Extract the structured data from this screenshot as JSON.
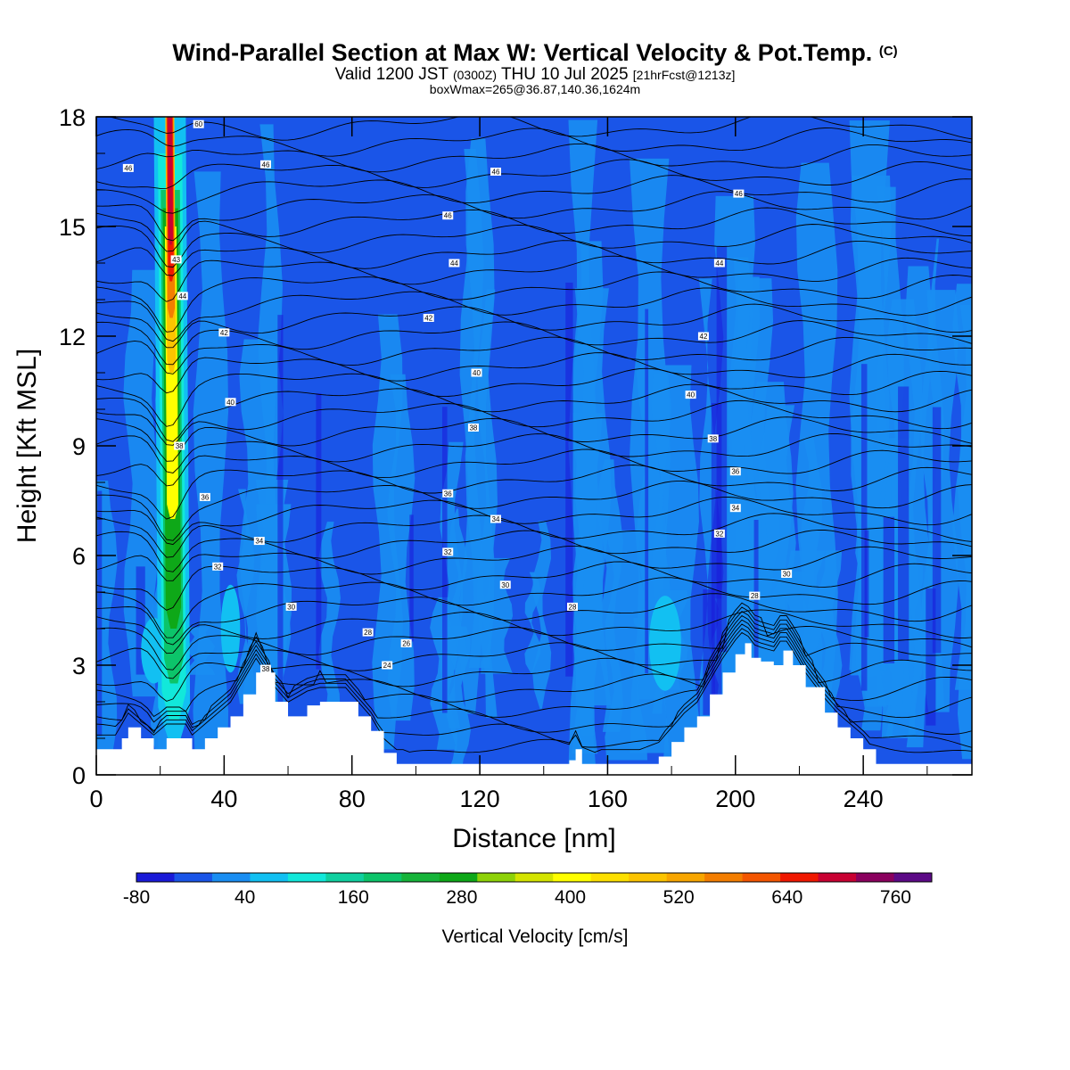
{
  "header": {
    "title": "Wind-Parallel Section at Max W: Vertical Velocity & Pot.Temp.",
    "title_mark": "(C)",
    "valid_pre": "Valid 1200 JST",
    "valid_z": "(0300Z)",
    "valid_post": "THU 10 Jul 2025",
    "fcst": "[21hrFcst@1213z]",
    "boxinfo": "boxWmax=265@36.87,140.36,1624m"
  },
  "chart_data": {
    "type": "heatmap",
    "xlabel": "Distance [nm]",
    "ylabel": "Height [Kft MSL]",
    "xlim": [
      0,
      274
    ],
    "ylim": [
      0,
      18
    ],
    "x_ticks": [
      "0",
      "40",
      "80",
      "120",
      "160",
      "200",
      "240"
    ],
    "y_ticks": [
      "0",
      "3",
      "6",
      "9",
      "12",
      "15",
      "18"
    ],
    "colorbar": {
      "label": "Vertical Velocity [cm/s]",
      "levels": [
        -80,
        -40,
        0,
        40,
        80,
        120,
        160,
        200,
        240,
        280,
        320,
        360,
        400,
        440,
        480,
        520,
        560,
        600,
        640,
        680,
        720,
        760,
        800
      ],
      "tick_labels": [
        "-80",
        "40",
        "160",
        "280",
        "400",
        "520",
        "640",
        "760"
      ],
      "colors": [
        "#1a1ad8",
        "#1a55e8",
        "#1a8ef2",
        "#12c0f2",
        "#12e8da",
        "#10d0a0",
        "#0cc46a",
        "#16b43a",
        "#0ea818",
        "#8ed208",
        "#d4e400",
        "#ffff00",
        "#fde000",
        "#fcc400",
        "#f8a600",
        "#f47e00",
        "#f45600",
        "#f01800",
        "#c80032",
        "#8a005e",
        "#5c0a86"
      ]
    },
    "updraft": {
      "x": 23,
      "w_max_cm_s": 700
    },
    "terrain_kft": [
      [
        0,
        0.7
      ],
      [
        6,
        0.7
      ],
      [
        8,
        1
      ],
      [
        10,
        1.3
      ],
      [
        14,
        1
      ],
      [
        18,
        0.7
      ],
      [
        22,
        1
      ],
      [
        28,
        1
      ],
      [
        30,
        0.7
      ],
      [
        34,
        1
      ],
      [
        38,
        1.3
      ],
      [
        42,
        1.6
      ],
      [
        46,
        2.2
      ],
      [
        50,
        2.8
      ],
      [
        56,
        2
      ],
      [
        60,
        1.6
      ],
      [
        66,
        1.9
      ],
      [
        70,
        2
      ],
      [
        74,
        2
      ],
      [
        78,
        2
      ],
      [
        82,
        1.6
      ],
      [
        86,
        1.2
      ],
      [
        90,
        0.6
      ],
      [
        94,
        0.3
      ],
      [
        100,
        0.3
      ],
      [
        110,
        0.3
      ],
      [
        120,
        0.3
      ],
      [
        130,
        0.3
      ],
      [
        140,
        0.3
      ],
      [
        148,
        0.4
      ],
      [
        150,
        0.7
      ],
      [
        152,
        0.3
      ],
      [
        160,
        0.3
      ],
      [
        170,
        0.3
      ],
      [
        176,
        0.5
      ],
      [
        180,
        0.9
      ],
      [
        184,
        1.3
      ],
      [
        188,
        1.6
      ],
      [
        192,
        2.2
      ],
      [
        196,
        2.8
      ],
      [
        200,
        3.3
      ],
      [
        203,
        3.6
      ],
      [
        205,
        3.2
      ],
      [
        208,
        3.1
      ],
      [
        212,
        3
      ],
      [
        215,
        3.4
      ],
      [
        218,
        3
      ],
      [
        222,
        2.4
      ],
      [
        228,
        1.7
      ],
      [
        232,
        1.3
      ],
      [
        236,
        1
      ],
      [
        240,
        0.7
      ],
      [
        244,
        0.3
      ],
      [
        260,
        0.3
      ],
      [
        274,
        0.3
      ]
    ],
    "theta_contour_labels": [
      {
        "x": 32,
        "y": 17.8,
        "v": "60"
      },
      {
        "x": 10,
        "y": 16.6,
        "v": "46"
      },
      {
        "x": 53,
        "y": 16.7,
        "v": "46"
      },
      {
        "x": 125,
        "y": 16.5,
        "v": "46"
      },
      {
        "x": 201,
        "y": 15.9,
        "v": "46"
      },
      {
        "x": 110,
        "y": 15.3,
        "v": "46"
      },
      {
        "x": 25,
        "y": 14.1,
        "v": "43"
      },
      {
        "x": 27,
        "y": 13.1,
        "v": "44"
      },
      {
        "x": 112,
        "y": 14.0,
        "v": "44"
      },
      {
        "x": 195,
        "y": 14.0,
        "v": "44"
      },
      {
        "x": 40,
        "y": 12.1,
        "v": "42"
      },
      {
        "x": 104,
        "y": 12.5,
        "v": "42"
      },
      {
        "x": 190,
        "y": 12.0,
        "v": "42"
      },
      {
        "x": 119,
        "y": 11.0,
        "v": "40"
      },
      {
        "x": 186,
        "y": 10.4,
        "v": "40"
      },
      {
        "x": 42,
        "y": 10.2,
        "v": "40"
      },
      {
        "x": 118,
        "y": 9.5,
        "v": "38"
      },
      {
        "x": 193,
        "y": 9.2,
        "v": "38"
      },
      {
        "x": 26,
        "y": 9.0,
        "v": "38"
      },
      {
        "x": 110,
        "y": 7.7,
        "v": "36"
      },
      {
        "x": 200,
        "y": 8.3,
        "v": "36"
      },
      {
        "x": 34,
        "y": 7.6,
        "v": "36"
      },
      {
        "x": 125,
        "y": 7.0,
        "v": "34"
      },
      {
        "x": 200,
        "y": 7.3,
        "v": "34"
      },
      {
        "x": 51,
        "y": 6.4,
        "v": "34"
      },
      {
        "x": 110,
        "y": 6.1,
        "v": "32"
      },
      {
        "x": 195,
        "y": 6.6,
        "v": "32"
      },
      {
        "x": 38,
        "y": 5.7,
        "v": "32"
      },
      {
        "x": 128,
        "y": 5.2,
        "v": "30"
      },
      {
        "x": 216,
        "y": 5.5,
        "v": "30"
      },
      {
        "x": 61,
        "y": 4.6,
        "v": "30"
      },
      {
        "x": 149,
        "y": 4.6,
        "v": "28"
      },
      {
        "x": 206,
        "y": 4.9,
        "v": "28"
      },
      {
        "x": 85,
        "y": 3.9,
        "v": "28"
      },
      {
        "x": 97,
        "y": 3.6,
        "v": "26"
      },
      {
        "x": 91,
        "y": 3.0,
        "v": "24"
      },
      {
        "x": 53,
        "y": 2.9,
        "v": "38"
      }
    ]
  }
}
